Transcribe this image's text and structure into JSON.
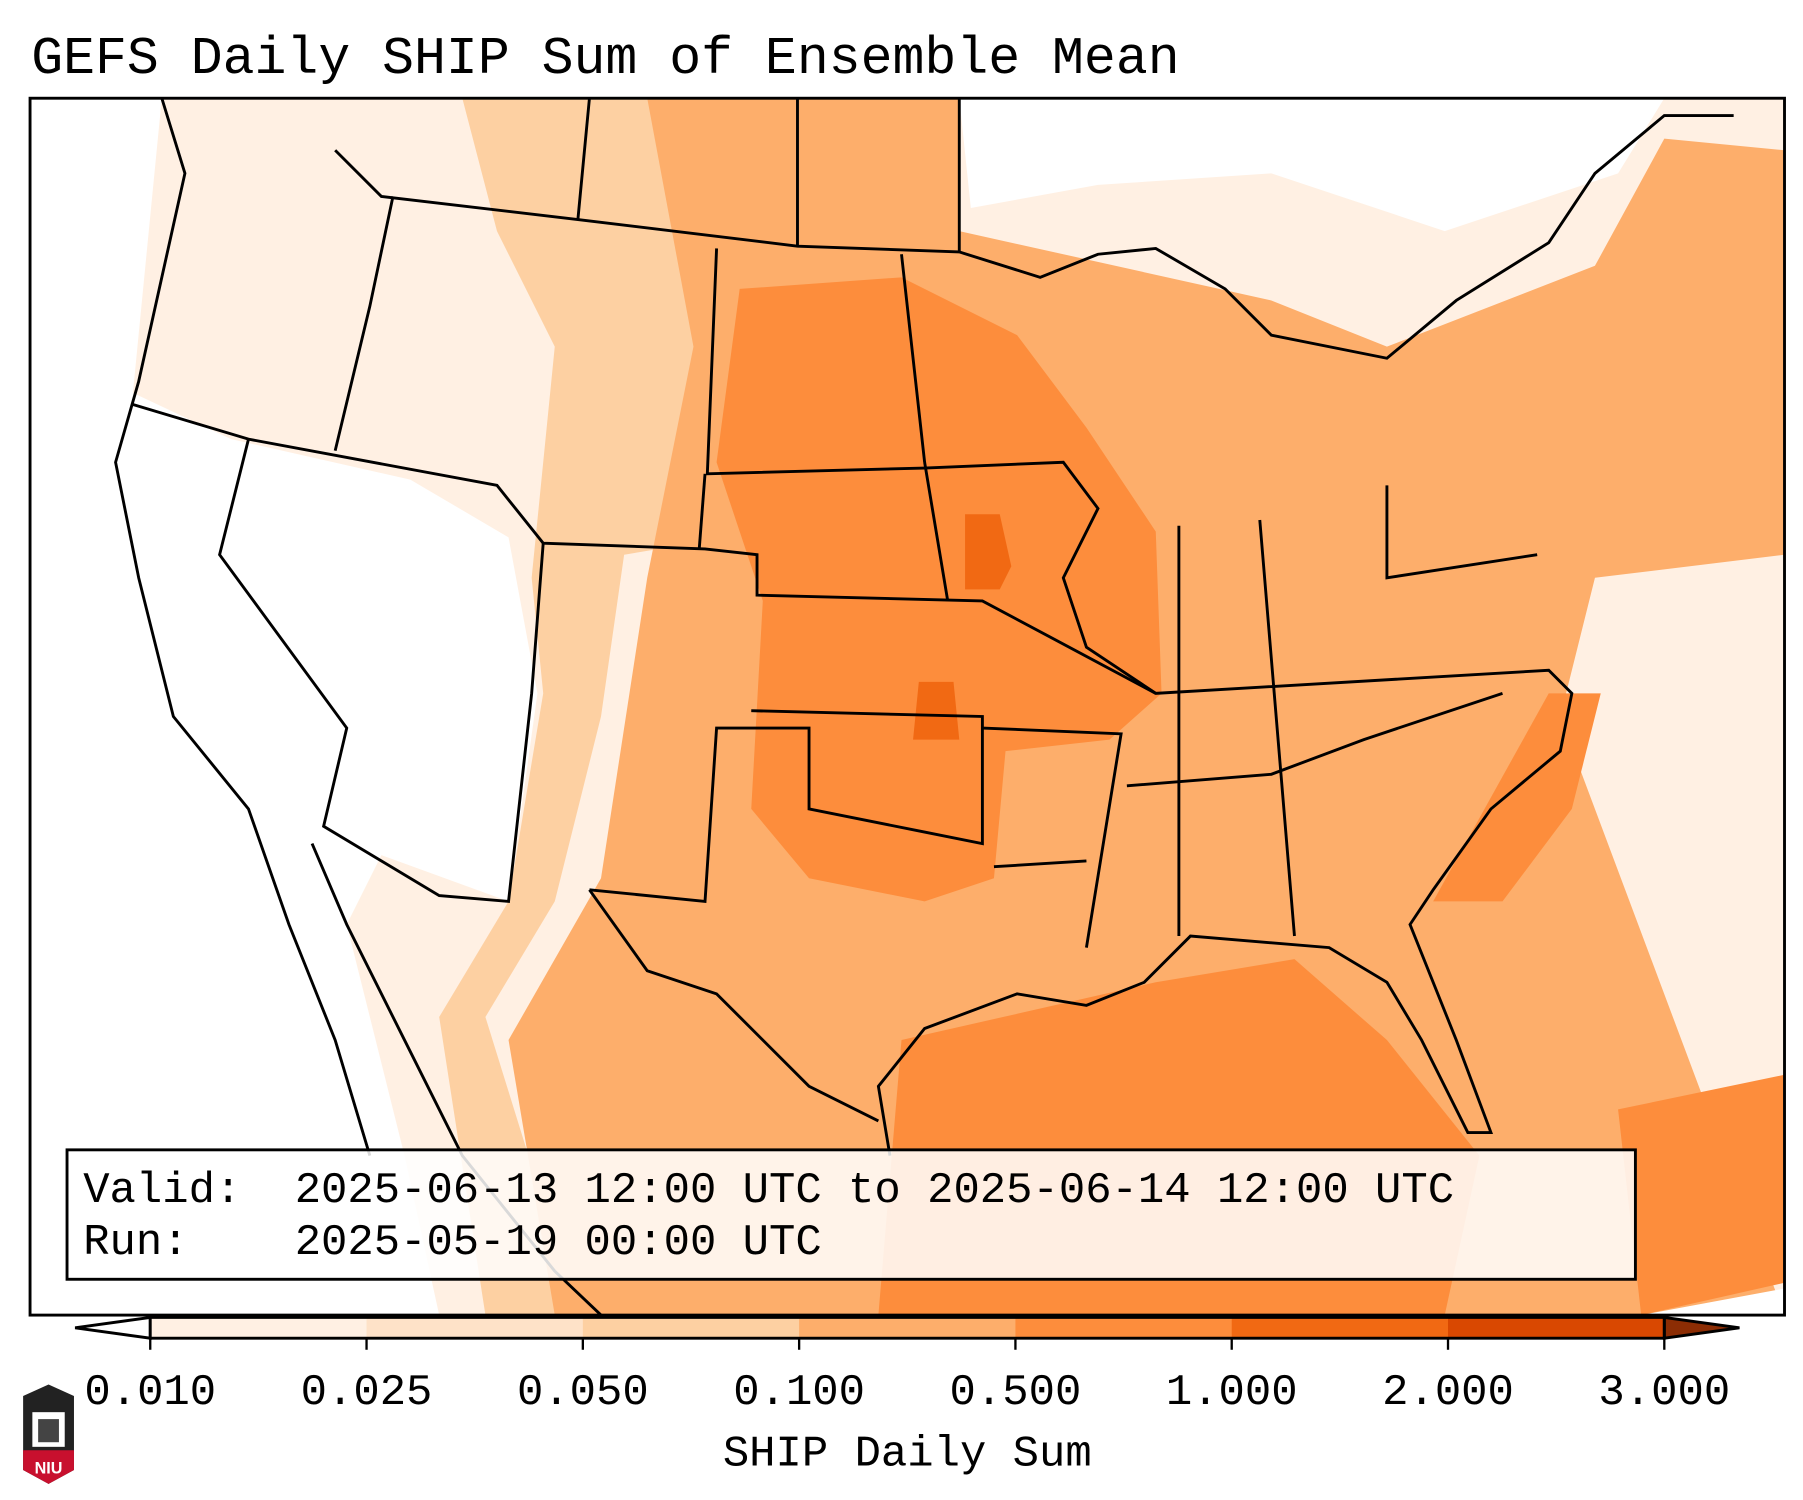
{
  "title": "GEFS Daily SHIP Sum of Ensemble Mean",
  "info": {
    "valid_label": "Valid:",
    "valid_value": "2025-06-13 12:00 UTC to 2025-06-14 12:00 UTC",
    "run_label": "Run:",
    "run_value": "2025-05-19 00:00 UTC"
  },
  "colorbar": {
    "label": "SHIP Daily Sum",
    "ticks": [
      "0.010",
      "0.025",
      "0.050",
      "0.100",
      "0.500",
      "1.000",
      "2.000",
      "3.000"
    ],
    "bin_colors": [
      "#fff0e3",
      "#fee2c8",
      "#fdd0a2",
      "#fdae6b",
      "#fd8d3c",
      "#f16913",
      "#d94801"
    ],
    "under_color": "#ffffff",
    "over_color": "#8c2d04"
  },
  "map_colors": {
    "none": "#ffffff",
    "lightest": "#fff0e3",
    "light": "#fee2c8",
    "low": "#fdd0a2",
    "mid": "#fdae6b",
    "high": "#fd8d3c",
    "higher": "#f16913"
  },
  "logo": {
    "text": "NIU",
    "color": "#c8102e"
  }
}
